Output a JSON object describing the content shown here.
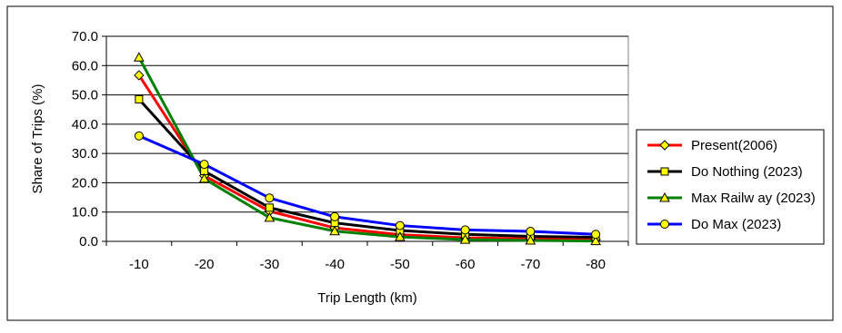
{
  "chart_data": {
    "type": "line",
    "title": "",
    "xlabel": "Trip Length (km)",
    "ylabel": "Share of Trips (%)",
    "categories": [
      "-10",
      "-20",
      "-30",
      "-40",
      "-50",
      "-60",
      "-70",
      "-80"
    ],
    "ylim": [
      0,
      70
    ],
    "ytick_step": 10,
    "ytick_labels": [
      "0.0",
      "10.0",
      "20.0",
      "30.0",
      "40.0",
      "50.0",
      "60.0",
      "70.0"
    ],
    "grid": true,
    "legend_position": "right",
    "series": [
      {
        "name": "Present(2006)",
        "color": "#ff0000",
        "marker": "diamond",
        "marker_fill": "#ffff00",
        "values": [
          56.7,
          22.4,
          10.3,
          4.6,
          2.3,
          1.2,
          0.9,
          0.6
        ]
      },
      {
        "name": "Do Nothing (2023)",
        "color": "#000000",
        "marker": "square",
        "marker_fill": "#ffff00",
        "values": [
          48.5,
          24.0,
          11.5,
          6.3,
          3.7,
          2.4,
          1.7,
          1.4
        ]
      },
      {
        "name": "Max Railw ay (2023)",
        "color": "#008000",
        "marker": "triangle",
        "marker_fill": "#ffff00",
        "values": [
          62.8,
          21.4,
          8.1,
          3.5,
          1.5,
          0.6,
          0.3,
          0.1
        ]
      },
      {
        "name": "Do Max (2023)",
        "color": "#0000ff",
        "marker": "circle",
        "marker_fill": "#ffff00",
        "values": [
          36.0,
          26.3,
          14.8,
          8.4,
          5.4,
          3.9,
          3.4,
          2.4
        ]
      }
    ]
  }
}
